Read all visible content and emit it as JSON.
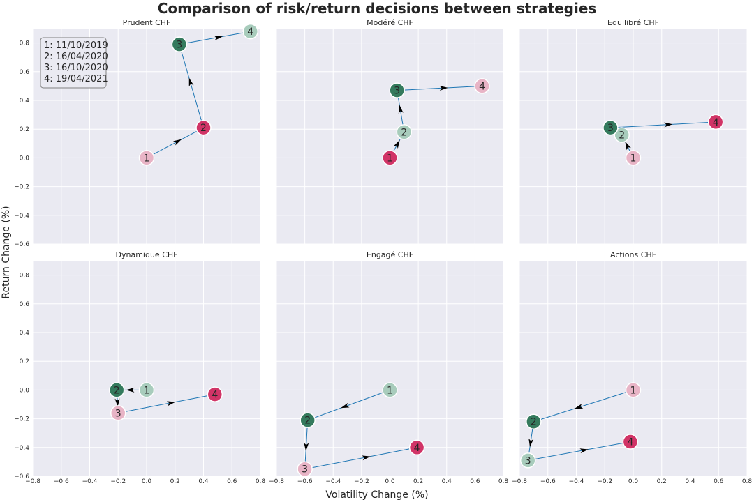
{
  "figure": {
    "title": "Comparison of risk/return decisions between strategies",
    "xlabel": "Volatility Change (%)",
    "ylabel": "Return Change (%)",
    "legend_lines": [
      "1: 11/10/2019",
      "2: 16/04/2020",
      "3: 16/10/2020",
      "4: 19/04/2021"
    ],
    "legend_placement": "top-left of first panel",
    "grid": true,
    "colors": {
      "background": "#eaeaf2",
      "grid": "#ffffff",
      "line": "#1f77b4",
      "pink_light": "#e8b4c6",
      "crimson": "#d13467",
      "teal_light": "#a8ccbc",
      "green_dark": "#347a5d"
    }
  },
  "chart_data": [
    {
      "type": "scatter",
      "title": "Prudent CHF",
      "xlim": [
        -0.8,
        0.8
      ],
      "ylim": [
        -0.6,
        0.9
      ],
      "points": [
        {
          "label": "1",
          "x": 0.0,
          "y": 0.0,
          "color": "pink_light"
        },
        {
          "label": "2",
          "x": 0.4,
          "y": 0.21,
          "color": "crimson"
        },
        {
          "label": "3",
          "x": 0.23,
          "y": 0.79,
          "color": "green_dark"
        },
        {
          "label": "4",
          "x": 0.73,
          "y": 0.88,
          "color": "teal_light"
        }
      ]
    },
    {
      "type": "scatter",
      "title": "Modéré CHF",
      "xlim": [
        -0.8,
        0.8
      ],
      "ylim": [
        -0.6,
        0.9
      ],
      "points": [
        {
          "label": "1",
          "x": 0.0,
          "y": 0.0,
          "color": "crimson"
        },
        {
          "label": "2",
          "x": 0.1,
          "y": 0.18,
          "color": "teal_light"
        },
        {
          "label": "3",
          "x": 0.05,
          "y": 0.47,
          "color": "green_dark"
        },
        {
          "label": "4",
          "x": 0.65,
          "y": 0.5,
          "color": "pink_light"
        }
      ]
    },
    {
      "type": "scatter",
      "title": "Equilibré CHF",
      "xlim": [
        -0.8,
        0.8
      ],
      "ylim": [
        -0.6,
        0.9
      ],
      "points": [
        {
          "label": "1",
          "x": 0.0,
          "y": 0.0,
          "color": "pink_light"
        },
        {
          "label": "2",
          "x": -0.08,
          "y": 0.16,
          "color": "teal_light"
        },
        {
          "label": "3",
          "x": -0.16,
          "y": 0.21,
          "color": "green_dark"
        },
        {
          "label": "4",
          "x": 0.58,
          "y": 0.25,
          "color": "crimson"
        }
      ]
    },
    {
      "type": "scatter",
      "title": "Dynamique CHF",
      "xlim": [
        -0.8,
        0.8
      ],
      "ylim": [
        -0.6,
        0.9
      ],
      "points": [
        {
          "label": "1",
          "x": 0.0,
          "y": 0.0,
          "color": "teal_light"
        },
        {
          "label": "2",
          "x": -0.21,
          "y": 0.0,
          "color": "green_dark"
        },
        {
          "label": "3",
          "x": -0.2,
          "y": -0.16,
          "color": "pink_light"
        },
        {
          "label": "4",
          "x": 0.48,
          "y": -0.03,
          "color": "crimson"
        }
      ]
    },
    {
      "type": "scatter",
      "title": "Engagé CHF",
      "xlim": [
        -0.8,
        0.8
      ],
      "ylim": [
        -0.6,
        0.9
      ],
      "points": [
        {
          "label": "1",
          "x": 0.0,
          "y": 0.0,
          "color": "teal_light"
        },
        {
          "label": "2",
          "x": -0.58,
          "y": -0.21,
          "color": "green_dark"
        },
        {
          "label": "3",
          "x": -0.6,
          "y": -0.55,
          "color": "pink_light"
        },
        {
          "label": "4",
          "x": 0.19,
          "y": -0.4,
          "color": "crimson"
        }
      ]
    },
    {
      "type": "scatter",
      "title": "Actions CHF",
      "xlim": [
        -0.8,
        0.8
      ],
      "ylim": [
        -0.6,
        0.9
      ],
      "points": [
        {
          "label": "1",
          "x": 0.0,
          "y": 0.0,
          "color": "pink_light"
        },
        {
          "label": "2",
          "x": -0.7,
          "y": -0.22,
          "color": "green_dark"
        },
        {
          "label": "3",
          "x": -0.74,
          "y": -0.49,
          "color": "teal_light"
        },
        {
          "label": "4",
          "x": -0.02,
          "y": -0.36,
          "color": "crimson"
        }
      ]
    }
  ],
  "ticks": {
    "x": [
      "−0.8",
      "−0.6",
      "−0.4",
      "−0.2",
      "0.0",
      "0.2",
      "0.4",
      "0.6",
      "0.8"
    ],
    "x_values": [
      -0.8,
      -0.6,
      -0.4,
      -0.2,
      0.0,
      0.2,
      0.4,
      0.6,
      0.8
    ],
    "y": [
      "−0.6",
      "−0.4",
      "−0.2",
      "0.0",
      "0.2",
      "0.4",
      "0.6",
      "0.8"
    ],
    "y_values": [
      -0.6,
      -0.4,
      -0.2,
      0.0,
      0.2,
      0.4,
      0.6,
      0.8
    ]
  }
}
